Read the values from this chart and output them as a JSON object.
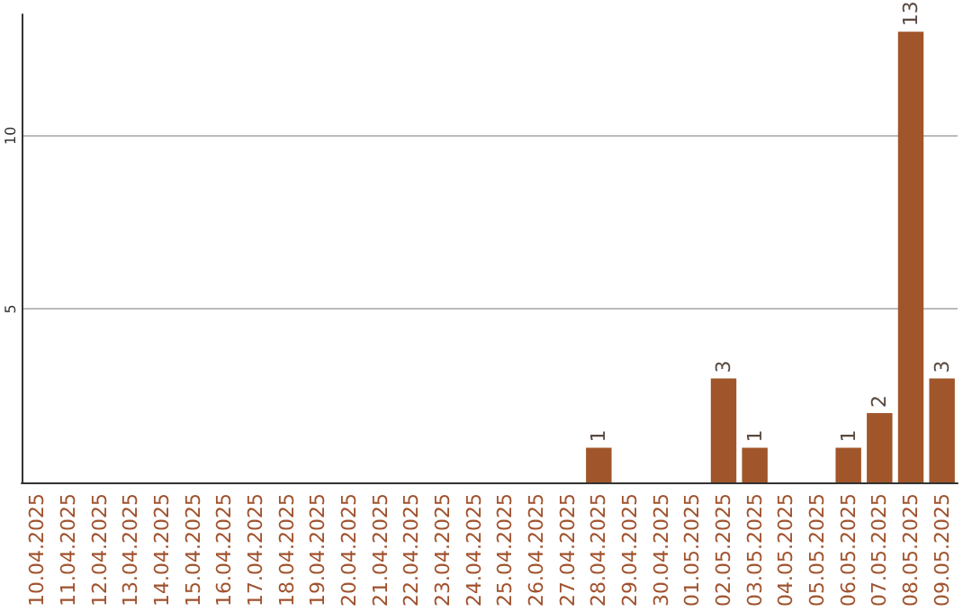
{
  "chart_data": {
    "type": "bar",
    "categories": [
      "10.04.2025",
      "11.04.2025",
      "12.04.2025",
      "13.04.2025",
      "14.04.2025",
      "15.04.2025",
      "16.04.2025",
      "17.04.2025",
      "18.04.2025",
      "19.04.2025",
      "20.04.2025",
      "21.04.2025",
      "22.04.2025",
      "23.04.2025",
      "24.04.2025",
      "25.04.2025",
      "26.04.2025",
      "27.04.2025",
      "28.04.2025",
      "29.04.2025",
      "30.04.2025",
      "01.05.2025",
      "02.05.2025",
      "03.05.2025",
      "04.05.2025",
      "05.05.2025",
      "06.05.2025",
      "07.05.2025",
      "08.05.2025",
      "09.05.2025"
    ],
    "values": [
      0,
      0,
      0,
      0,
      0,
      0,
      0,
      0,
      0,
      0,
      0,
      0,
      0,
      0,
      0,
      0,
      0,
      0,
      1,
      0,
      0,
      0,
      3,
      1,
      0,
      0,
      1,
      2,
      13,
      3
    ],
    "value_labels": [
      null,
      null,
      null,
      null,
      null,
      null,
      null,
      null,
      null,
      null,
      null,
      null,
      null,
      null,
      null,
      null,
      null,
      null,
      "1",
      null,
      null,
      null,
      "3",
      "1",
      null,
      null,
      "1",
      "2",
      "13",
      "3"
    ],
    "color": "#a0562a",
    "ylim": [
      0,
      13.5
    ],
    "yticks": [
      5,
      10
    ],
    "grid": "y"
  }
}
